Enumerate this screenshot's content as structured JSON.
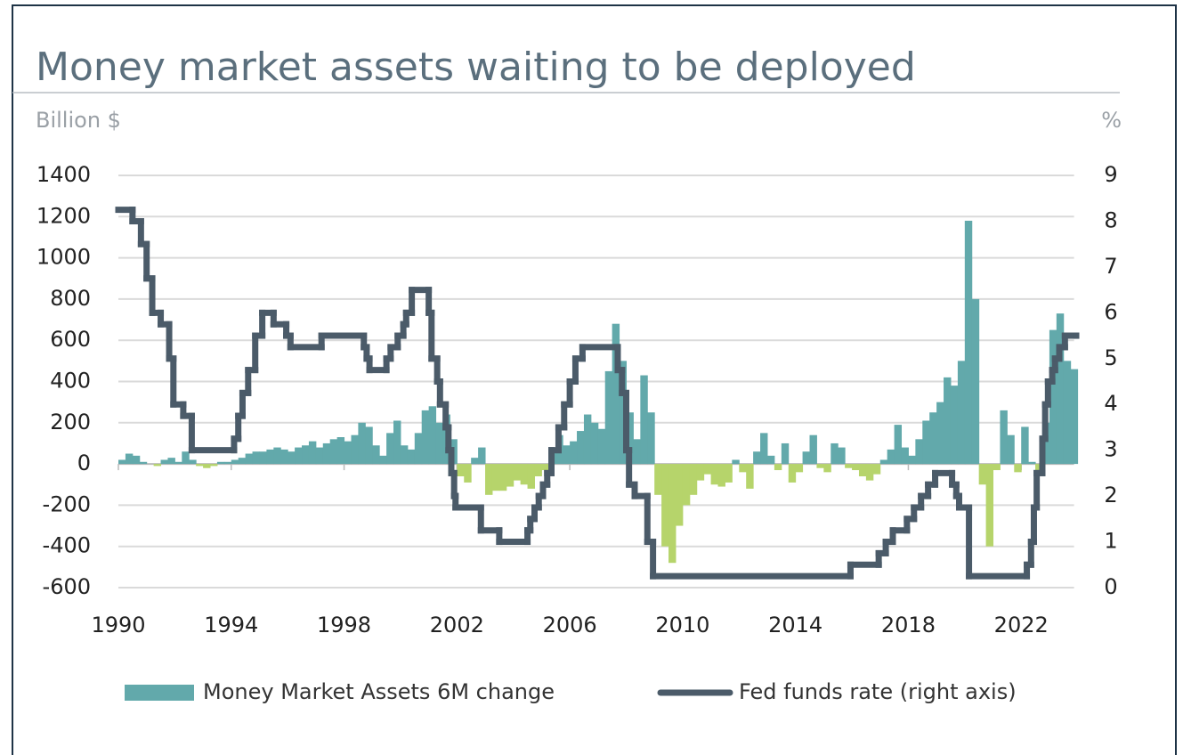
{
  "chart_data": {
    "type": "area-step",
    "title": "Money market assets waiting to be deployed",
    "y_label": "Billion $",
    "y2_label": "%",
    "xlim": [
      1990,
      2024
    ],
    "xticks": [
      1990,
      1994,
      1998,
      2002,
      2006,
      2010,
      2014,
      2018,
      2022
    ],
    "ylim": [
      -600,
      1400
    ],
    "yticks": [
      -600,
      -400,
      -200,
      0,
      200,
      400,
      600,
      800,
      1000,
      1200,
      1400
    ],
    "y2lim": [
      0,
      9
    ],
    "y2ticks": [
      0,
      1,
      2,
      3,
      4,
      5,
      6,
      7,
      8,
      9
    ],
    "grid": true,
    "legend": "bottom",
    "series": [
      {
        "name": "Money Market Assets 6M change",
        "type": "area",
        "color": "#62a9ab",
        "negative_color": "#b6d46b",
        "x": [
          1990,
          1990.25,
          1990.5,
          1990.75,
          1991,
          1991.25,
          1991.5,
          1991.75,
          1992,
          1992.25,
          1992.5,
          1992.75,
          1993,
          1993.25,
          1993.5,
          1993.75,
          1994,
          1994.25,
          1994.5,
          1994.75,
          1995,
          1995.25,
          1995.5,
          1995.75,
          1996,
          1996.25,
          1996.5,
          1996.75,
          1997,
          1997.25,
          1997.5,
          1997.75,
          1998,
          1998.25,
          1998.5,
          1998.75,
          1999,
          1999.25,
          1999.5,
          1999.75,
          2000,
          2000.25,
          2000.5,
          2000.75,
          2001,
          2001.25,
          2001.5,
          2001.75,
          2002,
          2002.25,
          2002.5,
          2002.75,
          2003,
          2003.25,
          2003.5,
          2003.75,
          2004,
          2004.25,
          2004.5,
          2004.75,
          2005,
          2005.25,
          2005.5,
          2005.75,
          2006,
          2006.25,
          2006.5,
          2006.75,
          2007,
          2007.25,
          2007.5,
          2007.75,
          2008,
          2008.25,
          2008.5,
          2008.75,
          2009,
          2009.25,
          2009.5,
          2009.75,
          2010,
          2010.25,
          2010.5,
          2010.75,
          2011,
          2011.25,
          2011.5,
          2011.75,
          2012,
          2012.25,
          2012.5,
          2012.75,
          2013,
          2013.25,
          2013.5,
          2013.75,
          2014,
          2014.25,
          2014.5,
          2014.75,
          2015,
          2015.25,
          2015.5,
          2015.75,
          2016,
          2016.25,
          2016.5,
          2016.75,
          2017,
          2017.25,
          2017.5,
          2017.75,
          2018,
          2018.25,
          2018.5,
          2018.75,
          2019,
          2019.25,
          2019.5,
          2019.75,
          2020,
          2020.25,
          2020.5,
          2020.75,
          2021,
          2021.25,
          2021.5,
          2021.75,
          2022,
          2022.25,
          2022.5,
          2022.75,
          2023,
          2023.25,
          2023.5,
          2023.75
        ],
        "values": [
          20,
          50,
          40,
          10,
          0,
          -10,
          20,
          30,
          10,
          60,
          20,
          -10,
          -20,
          -10,
          10,
          10,
          20,
          30,
          50,
          60,
          60,
          70,
          80,
          70,
          60,
          80,
          90,
          110,
          80,
          100,
          120,
          130,
          110,
          140,
          200,
          180,
          90,
          40,
          150,
          210,
          90,
          70,
          150,
          260,
          280,
          200,
          240,
          120,
          -60,
          -90,
          30,
          80,
          -150,
          -130,
          -130,
          -110,
          -80,
          -100,
          -120,
          -60,
          -30,
          60,
          140,
          90,
          110,
          160,
          240,
          200,
          170,
          450,
          680,
          500,
          250,
          120,
          430,
          250,
          -150,
          -400,
          -480,
          -300,
          -200,
          -150,
          -80,
          -50,
          -100,
          -110,
          -90,
          20,
          -40,
          -120,
          60,
          150,
          40,
          -30,
          100,
          -90,
          -40,
          60,
          140,
          -20,
          -40,
          100,
          80,
          -20,
          -30,
          -60,
          -80,
          -50,
          20,
          70,
          190,
          80,
          40,
          120,
          210,
          250,
          300,
          420,
          380,
          500,
          1180,
          800,
          -100,
          -400,
          -30,
          260,
          140,
          -40,
          180,
          10,
          -50,
          200,
          650,
          730,
          500,
          460
        ]
      },
      {
        "name": "Fed funds rate (right axis)",
        "type": "step",
        "axis": "y2",
        "color": "#4b5b69",
        "x": [
          1990,
          1990.5,
          1990.8,
          1991,
          1991.2,
          1991.5,
          1991.8,
          1991.95,
          1992.3,
          1992.6,
          1994.1,
          1994.25,
          1994.4,
          1994.6,
          1994.85,
          1995.1,
          1995.5,
          1995.95,
          1996.1,
          1997.2,
          1998.7,
          1998.8,
          1998.9,
          1999.5,
          1999.65,
          1999.9,
          2000.1,
          2000.2,
          2000.4,
          2001,
          2001.1,
          2001.3,
          2001.4,
          2001.6,
          2001.7,
          2001.8,
          2001.9,
          2001.95,
          2002.85,
          2003.5,
          2004.5,
          2004.6,
          2004.75,
          2004.9,
          2005.05,
          2005.2,
          2005.35,
          2005.6,
          2005.8,
          2006,
          2006.2,
          2006.45,
          2007.7,
          2007.85,
          2008,
          2008.1,
          2008.3,
          2008.75,
          2008.95,
          2015.95,
          2016.95,
          2017.2,
          2017.45,
          2017.95,
          2018.2,
          2018.45,
          2018.7,
          2018.95,
          2019.55,
          2019.7,
          2019.8,
          2020.15,
          2022.2,
          2022.35,
          2022.45,
          2022.55,
          2022.75,
          2022.85,
          2022.95,
          2023.1,
          2023.2,
          2023.35,
          2023.55,
          2023.95
        ],
        "values": [
          8.25,
          8,
          7.5,
          6.75,
          6,
          5.75,
          5,
          4,
          3.75,
          3,
          3.25,
          3.75,
          4.25,
          4.75,
          5.5,
          6,
          5.75,
          5.5,
          5.25,
          5.5,
          5.25,
          5,
          4.75,
          5,
          5.25,
          5.5,
          5.75,
          6,
          6.5,
          6,
          5,
          4.5,
          4,
          3.5,
          3,
          2.5,
          2,
          1.75,
          1.25,
          1,
          1.25,
          1.5,
          1.75,
          2,
          2.25,
          2.5,
          3,
          3.5,
          4,
          4.5,
          5,
          5.25,
          4.75,
          4.25,
          3,
          2.25,
          2,
          1,
          0.25,
          0.5,
          0.75,
          1,
          1.25,
          1.5,
          1.75,
          2,
          2.25,
          2.5,
          2.25,
          2,
          1.75,
          0.25,
          0.5,
          1,
          1.75,
          2.5,
          3.25,
          4,
          4.5,
          4.75,
          5,
          5.25,
          5.5,
          5.5
        ]
      }
    ]
  }
}
